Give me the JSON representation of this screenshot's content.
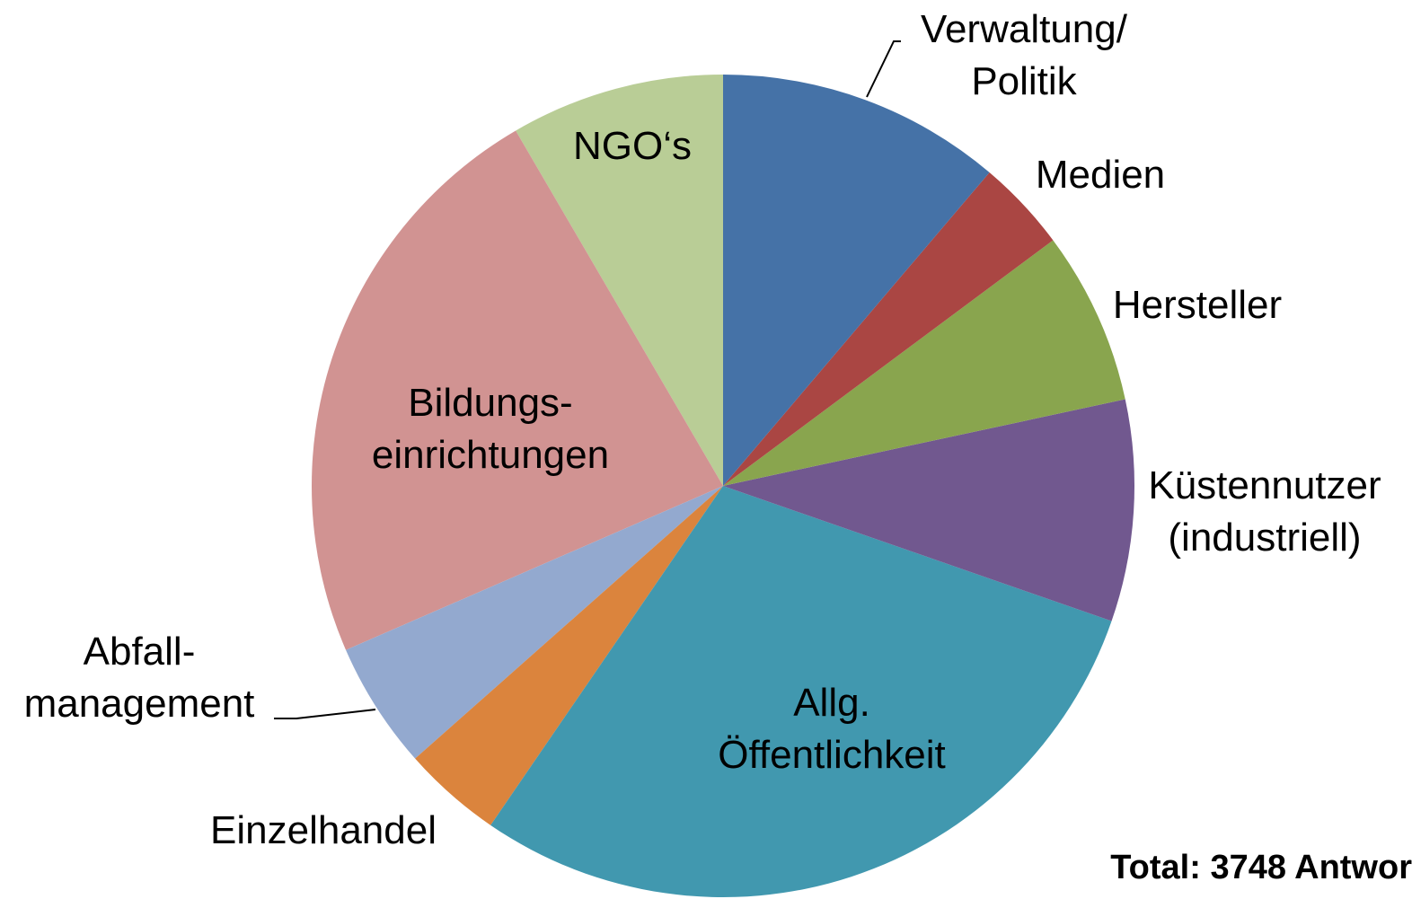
{
  "chart_data": {
    "type": "pie",
    "categories": [
      "Verwaltung/\nPolitik",
      "Medien",
      "Hersteller",
      "Küstennutzer\n(industriell)",
      "Allg.\nÖffentlichkeit",
      "Einzelhandel",
      "Abfall-\nmanagement",
      "Bildungs-\neinrichtungen",
      "NGO‘s"
    ],
    "values": [
      11.2,
      3.6,
      6.8,
      8.7,
      29.2,
      3.9,
      5.0,
      23.1,
      8.4
    ],
    "colors": [
      "#4572a7",
      "#aa4643",
      "#89a54e",
      "#71588f",
      "#4198af",
      "#db843d",
      "#93a9cf",
      "#d19392",
      "#b9cd96"
    ],
    "note": "Total: 3748 Antwor"
  }
}
